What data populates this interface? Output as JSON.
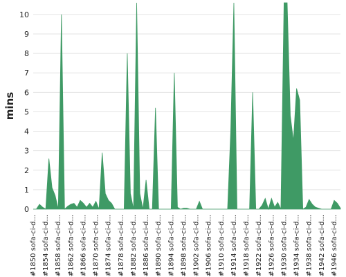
{
  "chart_data": {
    "type": "area",
    "title": "",
    "xlabel": "",
    "ylabel": "mins",
    "ylim": [
      0,
      10.6
    ],
    "yticks": [
      0,
      1,
      2,
      3,
      4,
      5,
      6,
      7,
      8,
      9,
      10
    ],
    "grid": true,
    "legend": "none",
    "color": "#3f9a65",
    "x_tick_labels": [
      "#1850 sofa-ci-d...",
      "#1854 sofa-ci-d...",
      "#1858 sofa-ci-d...",
      "#1862 sofa-ci-d...",
      "#1866 sofa-ci-d...",
      "#1870 sofa-ci-d...",
      "#1874 sofa-ci-d...",
      "#1878 sofa-ci-d...",
      "#1882 sofa-ci-d...",
      "#1886 sofa-ci-d...",
      "#1890 sofa-ci-d...",
      "#1894 sofa-ci-d...",
      "#1898 sofa-ci-d...",
      "#1902 sofa-ci-d...",
      "#1906 sofa-ci-d...",
      "#1910 sofa-ci-d...",
      "#1914 sofa-ci-d...",
      "#1918 sofa-ci-d...",
      "#1922 sofa-ci-d...",
      "#1926 sofa-ci-d...",
      "#1930 sofa-ci-d...",
      "#1934 sofa-ci-d...",
      "#1938 sofa-ci-d...",
      "#1942 sofa-ci-d...",
      "#1946 sofa-ci-d..."
    ],
    "series": [
      {
        "x": [
          1850,
          1851,
          1852,
          1853,
          1854,
          1855,
          1856,
          1857,
          1858,
          1859,
          1860,
          1861,
          1862,
          1863,
          1864,
          1865,
          1866,
          1867,
          1868,
          1869,
          1870,
          1871,
          1872,
          1873,
          1874,
          1875,
          1876,
          1877,
          1878,
          1879,
          1880,
          1881,
          1882,
          1883,
          1884,
          1885,
          1886,
          1887,
          1888,
          1889,
          1890,
          1891,
          1892,
          1893,
          1894,
          1895,
          1896,
          1897,
          1898,
          1899,
          1900,
          1901,
          1902,
          1903,
          1904,
          1905,
          1906,
          1907,
          1908,
          1909,
          1910,
          1911,
          1912,
          1913,
          1914,
          1915,
          1916,
          1917,
          1918,
          1919,
          1920,
          1921,
          1922,
          1923,
          1924,
          1925,
          1926,
          1927,
          1928,
          1929,
          1930,
          1931,
          1932,
          1933,
          1934,
          1935,
          1936,
          1937,
          1938,
          1939,
          1940,
          1941,
          1942,
          1943,
          1944,
          1945,
          1946,
          1947,
          1948
        ],
        "values": [
          0,
          0,
          0.25,
          0.1,
          0,
          2.6,
          1.1,
          0.7,
          0,
          10,
          0,
          0.15,
          0.25,
          0.3,
          0.1,
          0.45,
          0.3,
          0.1,
          0.3,
          0.1,
          0.4,
          0,
          2.9,
          0.8,
          0.45,
          0.3,
          0,
          0,
          0,
          0,
          8,
          0.8,
          0,
          10.6,
          0.8,
          0,
          1.5,
          0,
          0,
          5.2,
          0,
          0,
          0,
          0,
          0,
          7,
          0.1,
          0,
          0.05,
          0.05,
          0,
          0,
          0,
          0.4,
          0,
          0,
          0,
          0,
          0,
          0,
          0,
          0,
          0,
          4,
          10.6,
          0,
          0,
          0,
          0,
          0,
          6,
          0,
          0,
          0.2,
          0.55,
          0,
          0.55,
          0.1,
          0.35,
          0,
          10.6,
          10.6,
          4.8,
          3.5,
          6.2,
          5.6,
          0,
          0.1,
          0.5,
          0.25,
          0.1,
          0.05,
          0,
          0,
          0,
          0,
          0.45,
          0.3,
          0.05
        ]
      }
    ]
  }
}
